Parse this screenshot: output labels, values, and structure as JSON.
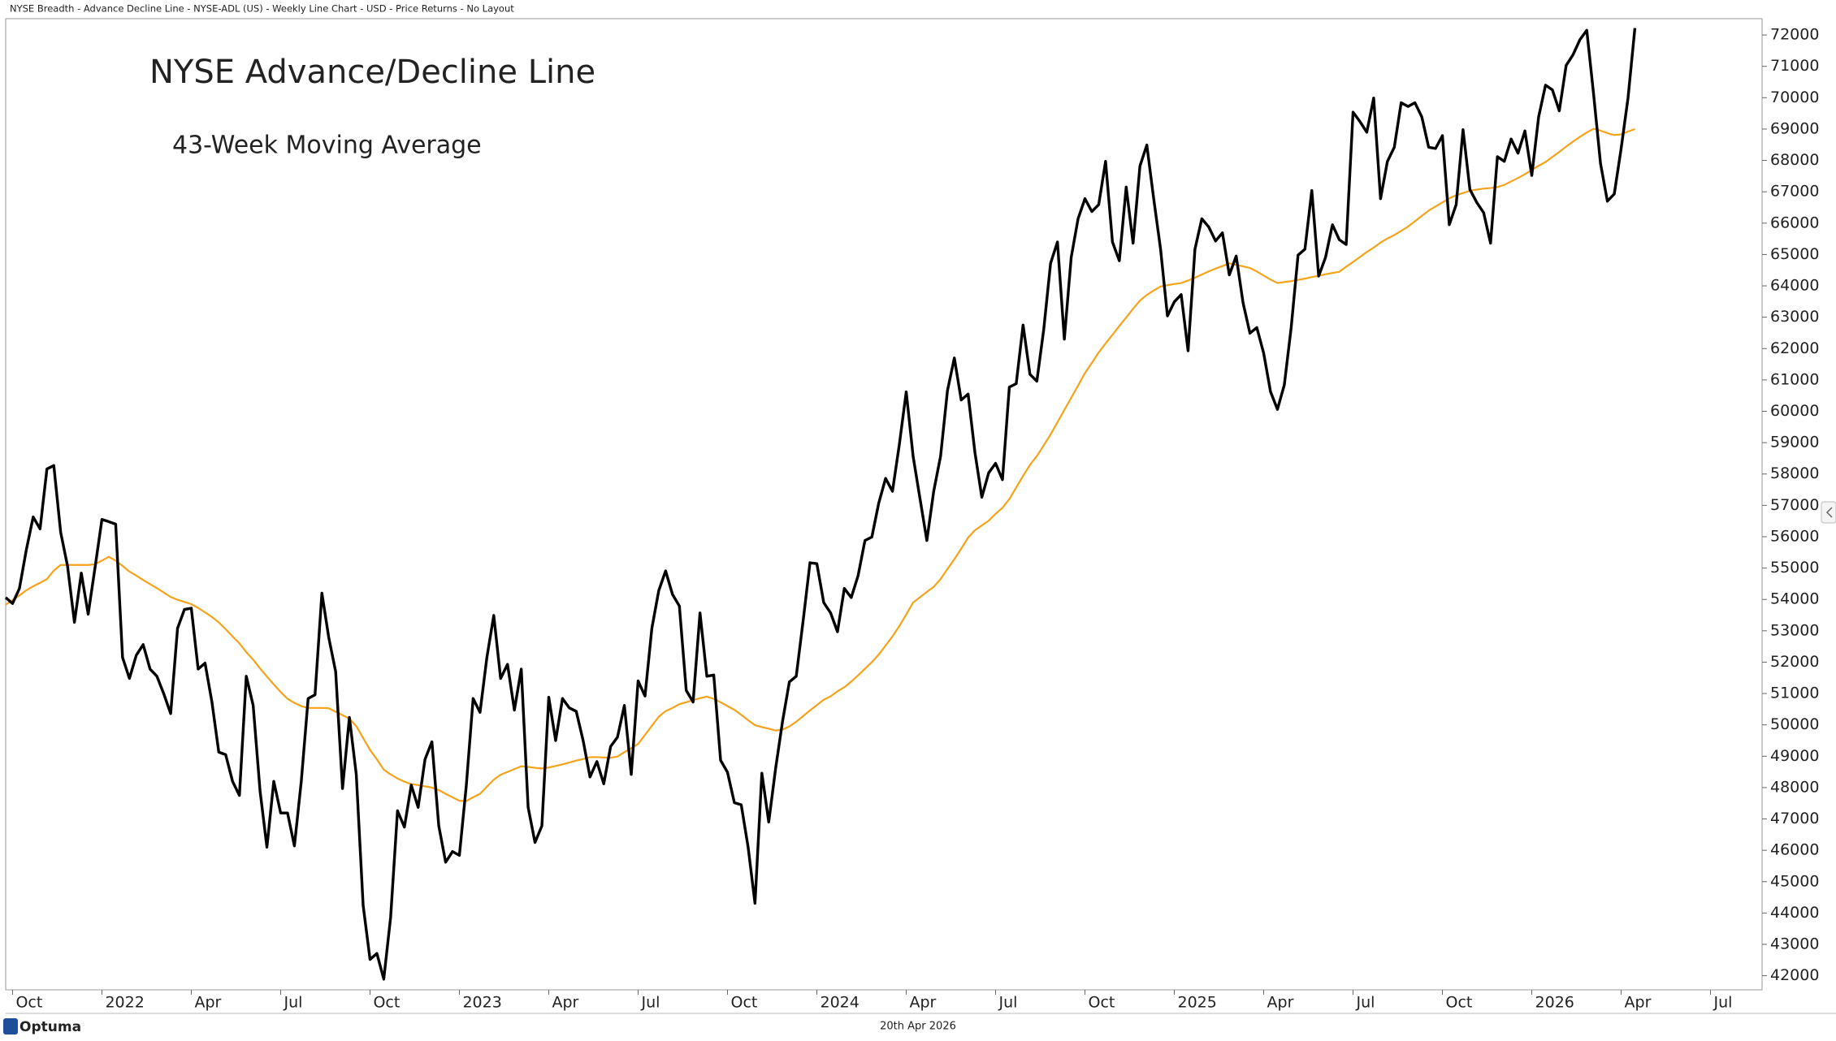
{
  "chart_data": {
    "type": "line",
    "header": "NYSE Breadth - Advance Decline Line - NYSE-ADL (US) - Weekly Line Chart - USD - Price Returns - No Layout",
    "title": "NYSE Advance/Decline Line",
    "date": "20th Apr 2026",
    "brand": "Optuma",
    "categories": [
      null,
      null,
      null,
      null,
      null,
      null,
      null,
      null,
      null,
      null,
      null,
      null,
      null,
      null,
      null,
      null,
      null,
      null,
      null,
      null,
      null,
      null,
      null,
      null,
      null,
      null,
      null,
      null,
      null,
      null,
      null,
      null,
      null,
      null,
      null,
      null,
      null,
      null,
      null,
      null,
      null,
      null,
      null,
      null,
      null,
      null,
      null,
      null,
      null,
      null,
      null,
      null,
      null,
      null,
      null,
      null,
      null,
      null,
      null,
      null,
      null,
      null,
      null,
      null,
      null,
      null,
      null,
      null,
      null,
      null,
      null,
      null,
      null,
      null,
      null,
      null,
      null,
      null,
      null,
      null,
      null,
      null,
      null,
      null,
      null,
      null,
      null,
      null,
      null,
      null,
      null,
      null,
      null,
      null,
      null,
      null,
      null,
      null,
      null,
      null,
      null,
      null,
      null,
      null,
      null,
      null,
      null,
      null,
      null,
      null,
      null,
      null,
      null,
      null,
      null,
      null,
      null,
      null,
      null,
      null,
      null,
      null,
      null,
      null,
      null,
      null,
      null,
      null,
      null,
      null,
      null,
      null,
      null,
      null,
      null,
      null,
      null,
      null,
      null,
      null,
      null,
      null,
      null,
      null,
      null,
      null,
      null,
      null,
      null,
      null,
      null,
      null,
      null,
      null,
      null,
      null,
      null,
      null,
      null,
      null,
      null,
      null,
      null,
      null,
      null,
      null,
      null,
      null,
      null,
      null,
      null,
      null,
      null,
      null,
      null,
      null,
      null,
      null,
      null,
      null,
      null,
      null,
      null,
      null,
      null,
      null,
      null,
      null,
      null,
      null,
      null,
      null,
      null,
      null,
      null,
      null,
      null,
      null,
      null,
      null,
      null,
      null,
      null,
      null,
      null,
      null,
      null,
      null,
      null,
      null,
      null,
      null,
      null,
      null,
      null,
      null,
      null,
      null,
      null,
      null,
      null,
      null,
      null,
      null,
      null,
      null,
      null,
      null,
      null,
      null,
      null,
      null,
      null,
      null,
      null,
      null,
      null,
      null
    ],
    "series": [
      {
        "color": "#000000",
        "values": [
          54060,
          53870,
          54350,
          55580,
          56630,
          56250,
          58160,
          58270,
          56140,
          55060,
          53270,
          54840,
          53530,
          55020,
          56550,
          56480,
          56400,
          52150,
          51480,
          52220,
          52560,
          51780,
          51550,
          50990,
          50360,
          53080,
          53680,
          53720,
          51780,
          51970,
          50730,
          49130,
          49050,
          48200,
          47750,
          51550,
          50620,
          47900,
          46100,
          48200,
          47190,
          47190,
          46140,
          48200,
          50840,
          50960,
          54200,
          52780,
          51700,
          47970,
          50240,
          48420,
          44240,
          42520,
          42710,
          41890,
          43870,
          47260,
          46740,
          48080,
          47370,
          48900,
          49460,
          46780,
          45620,
          45960,
          45840,
          48050,
          50840,
          50400,
          52150,
          53490,
          51480,
          51930,
          50470,
          51780,
          47370,
          46250,
          46780,
          50880,
          49500,
          50840,
          50540,
          50430,
          49500,
          48340,
          48830,
          48120,
          49310,
          49610,
          50620,
          48420,
          51400,
          50920,
          53080,
          54280,
          54910,
          54160,
          53790,
          51100,
          50730,
          53570,
          51550,
          51590,
          48870,
          48490,
          47520,
          47450,
          46100,
          44310,
          48460,
          46900,
          48610,
          50100,
          51370,
          51550,
          53310,
          55170,
          55140,
          53900,
          53570,
          52970,
          54350,
          54060,
          54760,
          55880,
          55990,
          57070,
          57860,
          57450,
          58940,
          60620,
          58570,
          57220,
          55880,
          57450,
          58570,
          60660,
          61700,
          60360,
          60550,
          58680,
          57260,
          58040,
          58340,
          57820,
          60770,
          60880,
          62750,
          61180,
          60960,
          62600,
          64720,
          65400,
          62300,
          64910,
          66140,
          66780,
          66370,
          66590,
          67970,
          65400,
          64800,
          67150,
          65360,
          67820,
          68490,
          66780,
          65170,
          63040,
          63490,
          63720,
          61930,
          65170,
          66140,
          65880,
          65430,
          65690,
          64350,
          64950,
          63460,
          62490,
          62670,
          61850,
          60620,
          60060,
          60840,
          62670,
          64980,
          65170,
          67040,
          64310,
          64910,
          65950,
          65470,
          65320,
          69540,
          69240,
          68900,
          69990,
          66780,
          67970,
          68420,
          69840,
          69720,
          69840,
          69390,
          68420,
          68380,
          68790,
          65950,
          66590,
          68980,
          67070,
          66660,
          66330,
          65360,
          68120,
          67970,
          68680,
          68230,
          68940,
          67520,
          69390,
          70400,
          70250,
          69580,
          71030,
          71370,
          71850,
          72150,
          70100,
          67900,
          66700,
          66930,
          68380,
          69990,
          72220
        ]
      },
      {
        "name": "43-Week Moving Average",
        "color": "#f5a31a",
        "values": [
          53830,
          53980,
          54130,
          54290,
          54420,
          54530,
          54650,
          54920,
          55100,
          55100,
          55100,
          55100,
          55100,
          55120,
          55240,
          55360,
          55240,
          55070,
          54890,
          54760,
          54620,
          54490,
          54360,
          54220,
          54080,
          53990,
          53920,
          53850,
          53730,
          53590,
          53440,
          53270,
          53050,
          52820,
          52600,
          52320,
          52080,
          51800,
          51540,
          51290,
          51050,
          50830,
          50700,
          50600,
          50540,
          50540,
          50540,
          50530,
          50420,
          50310,
          50200,
          49960,
          49580,
          49200,
          48900,
          48570,
          48420,
          48290,
          48190,
          48110,
          48080,
          48040,
          48000,
          47920,
          47800,
          47690,
          47580,
          47570,
          47690,
          47800,
          48030,
          48250,
          48410,
          48500,
          48590,
          48680,
          48660,
          48630,
          48610,
          48640,
          48690,
          48740,
          48800,
          48860,
          48910,
          48970,
          48970,
          48960,
          48950,
          48990,
          49130,
          49260,
          49390,
          49680,
          49970,
          50260,
          50440,
          50540,
          50660,
          50720,
          50790,
          50850,
          50900,
          50830,
          50720,
          50600,
          50480,
          50320,
          50150,
          49990,
          49930,
          49880,
          49820,
          49850,
          49950,
          50100,
          50280,
          50460,
          50630,
          50800,
          50910,
          51070,
          51200,
          51380,
          51580,
          51790,
          52000,
          52240,
          52530,
          52820,
          53150,
          53520,
          53900,
          54070,
          54240,
          54400,
          54650,
          54970,
          55280,
          55620,
          55970,
          56210,
          56360,
          56510,
          56730,
          56920,
          57200,
          57570,
          57940,
          58290,
          58570,
          58910,
          59260,
          59650,
          60040,
          60430,
          60820,
          61220,
          61540,
          61880,
          62160,
          62440,
          62720,
          62990,
          63270,
          63530,
          63710,
          63850,
          63980,
          64020,
          64060,
          64090,
          64170,
          64260,
          64360,
          64460,
          64550,
          64630,
          64720,
          64670,
          64620,
          64570,
          64460,
          64330,
          64200,
          64090,
          64120,
          64150,
          64190,
          64230,
          64280,
          64320,
          64370,
          64410,
          64450,
          64610,
          64760,
          64920,
          65080,
          65220,
          65380,
          65510,
          65620,
          65750,
          65890,
          66060,
          66230,
          66400,
          66530,
          66660,
          66790,
          66890,
          66960,
          67030,
          67070,
          67100,
          67120,
          67150,
          67220,
          67330,
          67440,
          67560,
          67700,
          67830,
          67950,
          68110,
          68270,
          68440,
          68600,
          68750,
          68890,
          69010,
          68950,
          68870,
          68810,
          68830,
          68920,
          69000
        ]
      }
    ],
    "xlim": [
      0,
      255.5
    ],
    "xticks": [
      {
        "value": 1,
        "label": "Oct"
      },
      {
        "value": 14,
        "label": "2022"
      },
      {
        "value": 27,
        "label": "Apr"
      },
      {
        "value": 40,
        "label": "Jul"
      },
      {
        "value": 53,
        "label": "Oct"
      },
      {
        "value": 66,
        "label": "2023"
      },
      {
        "value": 79,
        "label": "Apr"
      },
      {
        "value": 92,
        "label": "Jul"
      },
      {
        "value": 105,
        "label": "Oct"
      },
      {
        "value": 118,
        "label": "2024"
      },
      {
        "value": 131,
        "label": "Apr"
      },
      {
        "value": 144,
        "label": "Jul"
      },
      {
        "value": 157,
        "label": "Oct"
      },
      {
        "value": 170,
        "label": "2025"
      },
      {
        "value": 183,
        "label": "Apr"
      },
      {
        "value": 196,
        "label": "Jul"
      },
      {
        "value": 209,
        "label": "Oct"
      },
      {
        "value": 222,
        "label": "2026"
      },
      {
        "value": 235,
        "label": "Apr"
      },
      {
        "value": 248,
        "label": "Jul"
      }
    ],
    "ylim": [
      41550,
      72520
    ],
    "yticks": [
      42000,
      43000,
      44000,
      45000,
      46000,
      47000,
      48000,
      49000,
      50000,
      51000,
      52000,
      53000,
      54000,
      55000,
      56000,
      57000,
      58000,
      59000,
      60000,
      61000,
      62000,
      63000,
      64000,
      65000,
      66000,
      67000,
      68000,
      69000,
      70000,
      71000,
      72000
    ]
  }
}
